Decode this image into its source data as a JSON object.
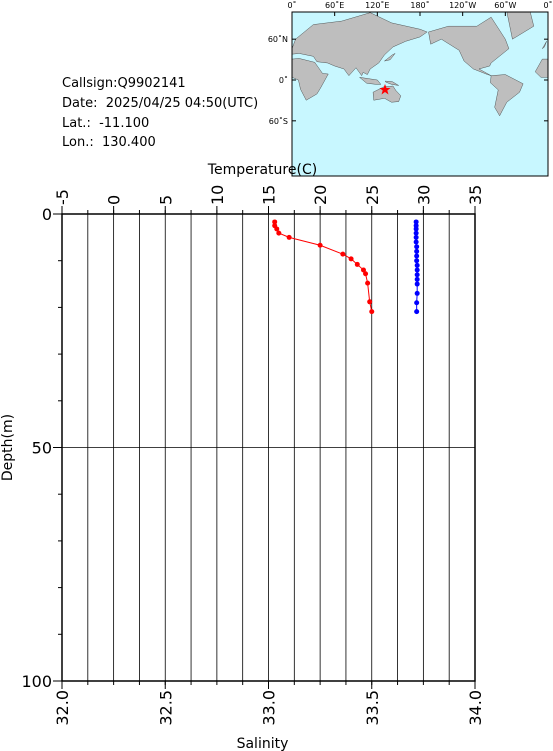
{
  "map": {
    "lon_labels": [
      "0˚",
      "60˚E",
      "120˚E",
      "180˚",
      "120˚W",
      "60˚W",
      "0˚"
    ],
    "lat_labels": [
      "60˚N",
      "0˚",
      "60˚S"
    ]
  },
  "info": [
    "Callsign:Q9902141",
    "Date:  2025/04/25 04:50(UTC)",
    "Lat.:  -11.100",
    "Lon.:  130.400"
  ],
  "chart_data": {
    "type": "line",
    "x2label": "Temperature(C)",
    "xlabel": "Salinity",
    "ylabel": "Depth(m)",
    "xlim": [
      32,
      34
    ],
    "xticks": [
      {
        "value": 32,
        "label": "32.0"
      },
      {
        "value": 32.5,
        "label": "32.5"
      },
      {
        "value": 33,
        "label": "33.0"
      },
      {
        "value": 33.5,
        "label": "33.5"
      },
      {
        "value": 34,
        "label": "34.0"
      }
    ],
    "x2lim": [
      -5,
      35
    ],
    "x2ticks": [
      -5,
      0,
      5,
      10,
      15,
      20,
      25,
      30,
      35
    ],
    "x2grid": [
      -2.5,
      0,
      2.5,
      5,
      7.5,
      10,
      12.5,
      15,
      17.5,
      20,
      22.5,
      25,
      27.5,
      30,
      32.5
    ],
    "ylim": [
      0,
      100
    ],
    "yticks": [
      0,
      50,
      100
    ],
    "yminor": [
      10,
      20,
      30,
      40,
      60,
      70,
      80,
      90
    ],
    "inverted_y": true,
    "series": [
      {
        "axis": "x",
        "color": "#ff0000",
        "y": [
          1.7,
          2.5,
          3.2,
          4.1,
          5.0,
          6.7,
          8.6,
          9.6,
          10.8,
          12.0,
          12.8,
          14.8,
          18.8,
          20.9
        ],
        "values": [
          33.03,
          33.03,
          33.04,
          33.05,
          33.1,
          33.25,
          33.36,
          33.4,
          33.43,
          33.46,
          33.47,
          33.48,
          33.49,
          33.5
        ]
      },
      {
        "axis": "x2",
        "color": "#0000ff",
        "y": [
          1.7,
          2.5,
          3.2,
          4.1,
          5.0,
          6.0,
          7.0,
          8.0,
          9.0,
          10.0,
          11.0,
          12.0,
          13.0,
          14.0,
          15.0,
          17.0,
          19.0,
          20.9
        ],
        "values": [
          29.3,
          29.3,
          29.3,
          29.3,
          29.3,
          29.3,
          29.35,
          29.35,
          29.35,
          29.35,
          29.4,
          29.4,
          29.4,
          29.4,
          29.4,
          29.4,
          29.35,
          29.35
        ]
      }
    ]
  }
}
